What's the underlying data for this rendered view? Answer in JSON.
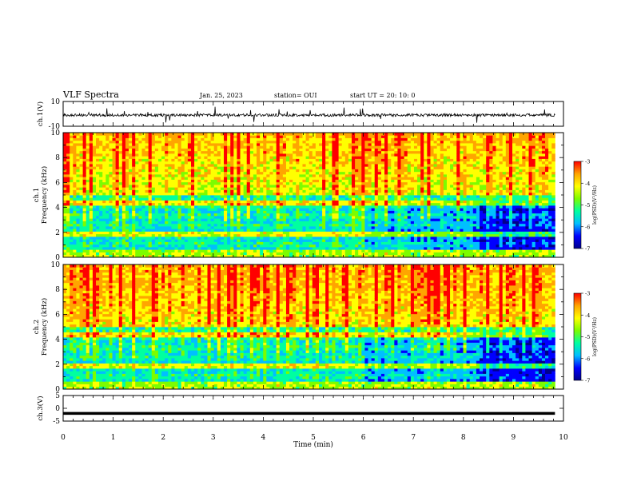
{
  "header": {
    "title": "VLF Spectra",
    "date": "Jan. 25, 2023",
    "station": "station= OUI",
    "start": "start  UT =   20: 10: 0"
  },
  "colorbar": {
    "label": "log(PSD)(V²/Hz)",
    "ticks": [
      "-3",
      "-4",
      "-5",
      "-6",
      "-7"
    ],
    "colors": [
      "#ff0000",
      "#ffa500",
      "#ffff00",
      "#7cfc00",
      "#00ffa0",
      "#00bfff",
      "#0000ff",
      "#00008b"
    ]
  },
  "chart_data": [
    {
      "type": "line",
      "panel": "ch1-waveform",
      "ylabel": "ch.1(V)",
      "ylim": [
        -10,
        10
      ],
      "yticks": [
        "10",
        "-10"
      ],
      "xlim": [
        0,
        10
      ],
      "series": [
        {
          "values_description": "noise waveform about -1 V with amplitude ~2 V and sporadic spikes to about ±8 V"
        }
      ]
    },
    {
      "type": "heatmap",
      "panel": "ch1-spectrogram",
      "ylabel": "ch.1 Frequency (kHz)",
      "ylim": [
        0,
        10
      ],
      "yticks": [
        "0",
        "2",
        "4",
        "6",
        "8",
        "10"
      ],
      "xlim": [
        0,
        10
      ],
      "zlim": [
        -7,
        -3
      ],
      "zlabel": "log(PSD)(V²/Hz)"
    },
    {
      "type": "heatmap",
      "panel": "ch2-spectrogram",
      "ylabel": "ch.2 Frequency (kHz)",
      "ylim": [
        0,
        10
      ],
      "yticks": [
        "0",
        "2",
        "4",
        "6",
        "8",
        "10"
      ],
      "xlim": [
        0,
        10
      ],
      "zlim": [
        -7,
        -3
      ],
      "zlabel": "log(PSD)(V²/Hz)"
    },
    {
      "type": "line",
      "panel": "ch3-waveform",
      "ylabel": "ch.3(V)",
      "ylim": [
        -5,
        5
      ],
      "yticks": [
        "5",
        "0",
        "-5"
      ],
      "xlim": [
        0,
        10
      ],
      "series": [
        {
          "values": [
            -2,
            -2
          ]
        }
      ]
    }
  ],
  "xaxis": {
    "label": "Time (min)",
    "ticks": [
      "0",
      "1",
      "2",
      "3",
      "4",
      "5",
      "6",
      "7",
      "8",
      "9",
      "10"
    ],
    "data_end_min": 9.83
  }
}
